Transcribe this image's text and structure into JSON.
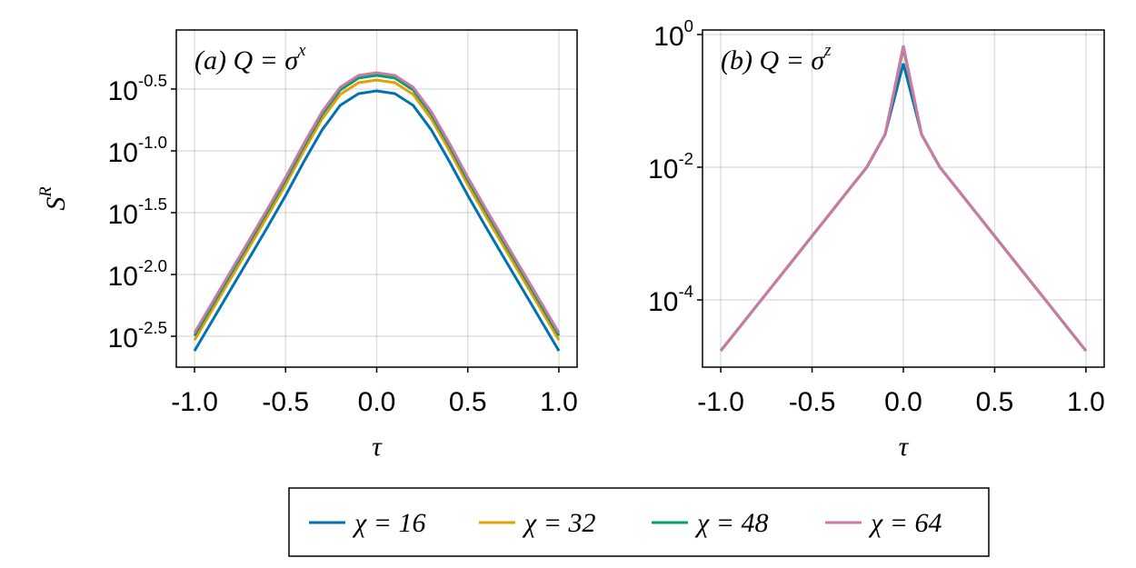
{
  "chart_data": [
    {
      "type": "line",
      "title": "(a) Q = σ^x",
      "x_label": "τ",
      "y_label": "S^R",
      "log_y": true,
      "grid": true,
      "x": [
        -1,
        -0.9,
        -0.8,
        -0.7,
        -0.6,
        -0.5,
        -0.4,
        -0.3,
        -0.2,
        -0.1,
        0,
        0.1,
        0.2,
        0.3,
        0.4,
        0.5,
        0.6,
        0.7,
        0.8,
        0.9,
        1
      ],
      "xlim": [
        -1.1,
        1.1
      ],
      "xticks": [
        {
          "value": -1,
          "label": "-1.0"
        },
        -0.5,
        {
          "value": 0,
          "label": "0.0"
        },
        0.5,
        {
          "value": 1,
          "label": "1.0"
        }
      ],
      "ylim": [
        0.00178,
        0.95
      ],
      "yticks": [
        {
          "value": 0.31623,
          "label": "10^-0.5"
        },
        {
          "value": 0.1,
          "label": "10^-1.0"
        },
        {
          "value": 0.031623,
          "label": "10^-1.5"
        },
        {
          "value": 0.01,
          "label": "10^-2.0"
        },
        {
          "value": 0.0031623,
          "label": "10^-2.5"
        }
      ],
      "series": [
        {
          "name": "χ = 16",
          "color": "#0072b2",
          "values": [
            0.00241,
            0.00429,
            0.00762,
            0.01355,
            0.0241,
            0.0436,
            0.0816,
            0.1476,
            0.2334,
            0.2906,
            0.3056,
            0.2906,
            0.2334,
            0.1476,
            0.0816,
            0.0436,
            0.0241,
            0.01355,
            0.00762,
            0.00429,
            0.00241
          ]
        },
        {
          "name": "χ = 32",
          "color": "#e69f00",
          "values": [
            0.00295,
            0.00526,
            0.00934,
            0.0166,
            0.0295,
            0.0534,
            0.1,
            0.181,
            0.286,
            0.356,
            0.374,
            0.356,
            0.286,
            0.181,
            0.1,
            0.0534,
            0.0295,
            0.0166,
            0.00934,
            0.00526,
            0.00295
          ]
        },
        {
          "name": "χ = 48",
          "color": "#009e73",
          "values": [
            0.00321,
            0.00572,
            0.01017,
            0.0181,
            0.0322,
            0.0582,
            0.109,
            0.197,
            0.311,
            0.388,
            0.408,
            0.388,
            0.311,
            0.197,
            0.109,
            0.0582,
            0.0322,
            0.0181,
            0.01017,
            0.00572,
            0.00321
          ]
        },
        {
          "name": "χ = 64",
          "color": "#cc79a7",
          "values": [
            0.00338,
            0.00602,
            0.01069,
            0.019,
            0.0338,
            0.0612,
            0.1145,
            0.207,
            0.327,
            0.408,
            0.429,
            0.408,
            0.327,
            0.207,
            0.1145,
            0.0612,
            0.0338,
            0.019,
            0.01069,
            0.00602,
            0.00338
          ]
        }
      ]
    },
    {
      "type": "line",
      "title": "(b) Q = σ^z",
      "x_label": "τ",
      "log_y": true,
      "grid": true,
      "x": [
        -1,
        -0.9,
        -0.8,
        -0.7,
        -0.6,
        -0.5,
        -0.4,
        -0.3,
        -0.2,
        -0.1,
        0,
        0.1,
        0.2,
        0.3,
        0.4,
        0.5,
        0.6,
        0.7,
        0.8,
        0.9,
        1
      ],
      "xlim": [
        -1.1,
        1.1
      ],
      "xticks": [
        {
          "value": -1,
          "label": "-1.0"
        },
        -0.5,
        {
          "value": 0,
          "label": "0.0"
        },
        0.5,
        {
          "value": 1,
          "label": "1.0"
        }
      ],
      "ylim": [
        9.7e-06,
        1.17
      ],
      "yticks": [
        {
          "value": 1,
          "label": "10^0"
        },
        {
          "value": 0.01,
          "label": "10^-2"
        },
        {
          "value": 0.0001,
          "label": "10^-4"
        }
      ],
      "series": [
        {
          "color": "#0072b2",
          "values": [
            1.71e-05,
            3.79e-05,
            8.41e-05,
            0.000186,
            0.000413,
            0.000916,
            0.00203,
            0.00451,
            0.01,
            0.0311,
            0.365,
            0.0311,
            0.01,
            0.00451,
            0.00203,
            0.000916,
            0.000413,
            0.000186,
            8.41e-05,
            3.79e-05,
            1.71e-05
          ]
        },
        {
          "color": "#e69f00",
          "values": [
            1.71e-05,
            3.79e-05,
            8.41e-05,
            0.000186,
            0.000413,
            0.000916,
            0.00203,
            0.00451,
            0.01,
            0.0311,
            0.62,
            0.0311,
            0.01,
            0.00451,
            0.00203,
            0.000916,
            0.000413,
            0.000186,
            8.41e-05,
            3.79e-05,
            1.71e-05
          ]
        },
        {
          "color": "#009e73",
          "values": [
            1.71e-05,
            3.79e-05,
            8.41e-05,
            0.000186,
            0.000413,
            0.000916,
            0.00203,
            0.00451,
            0.01,
            0.0311,
            0.65,
            0.0311,
            0.01,
            0.00451,
            0.00203,
            0.000916,
            0.000413,
            0.000186,
            8.41e-05,
            3.79e-05,
            1.71e-05
          ]
        },
        {
          "color": "#cc79a7",
          "values": [
            1.71e-05,
            3.79e-05,
            8.41e-05,
            0.000186,
            0.000413,
            0.000916,
            0.00203,
            0.00451,
            0.01,
            0.0311,
            0.68,
            0.0311,
            0.01,
            0.00451,
            0.00203,
            0.000916,
            0.000413,
            0.000186,
            8.41e-05,
            3.79e-05,
            1.71e-05
          ]
        }
      ]
    }
  ]
}
